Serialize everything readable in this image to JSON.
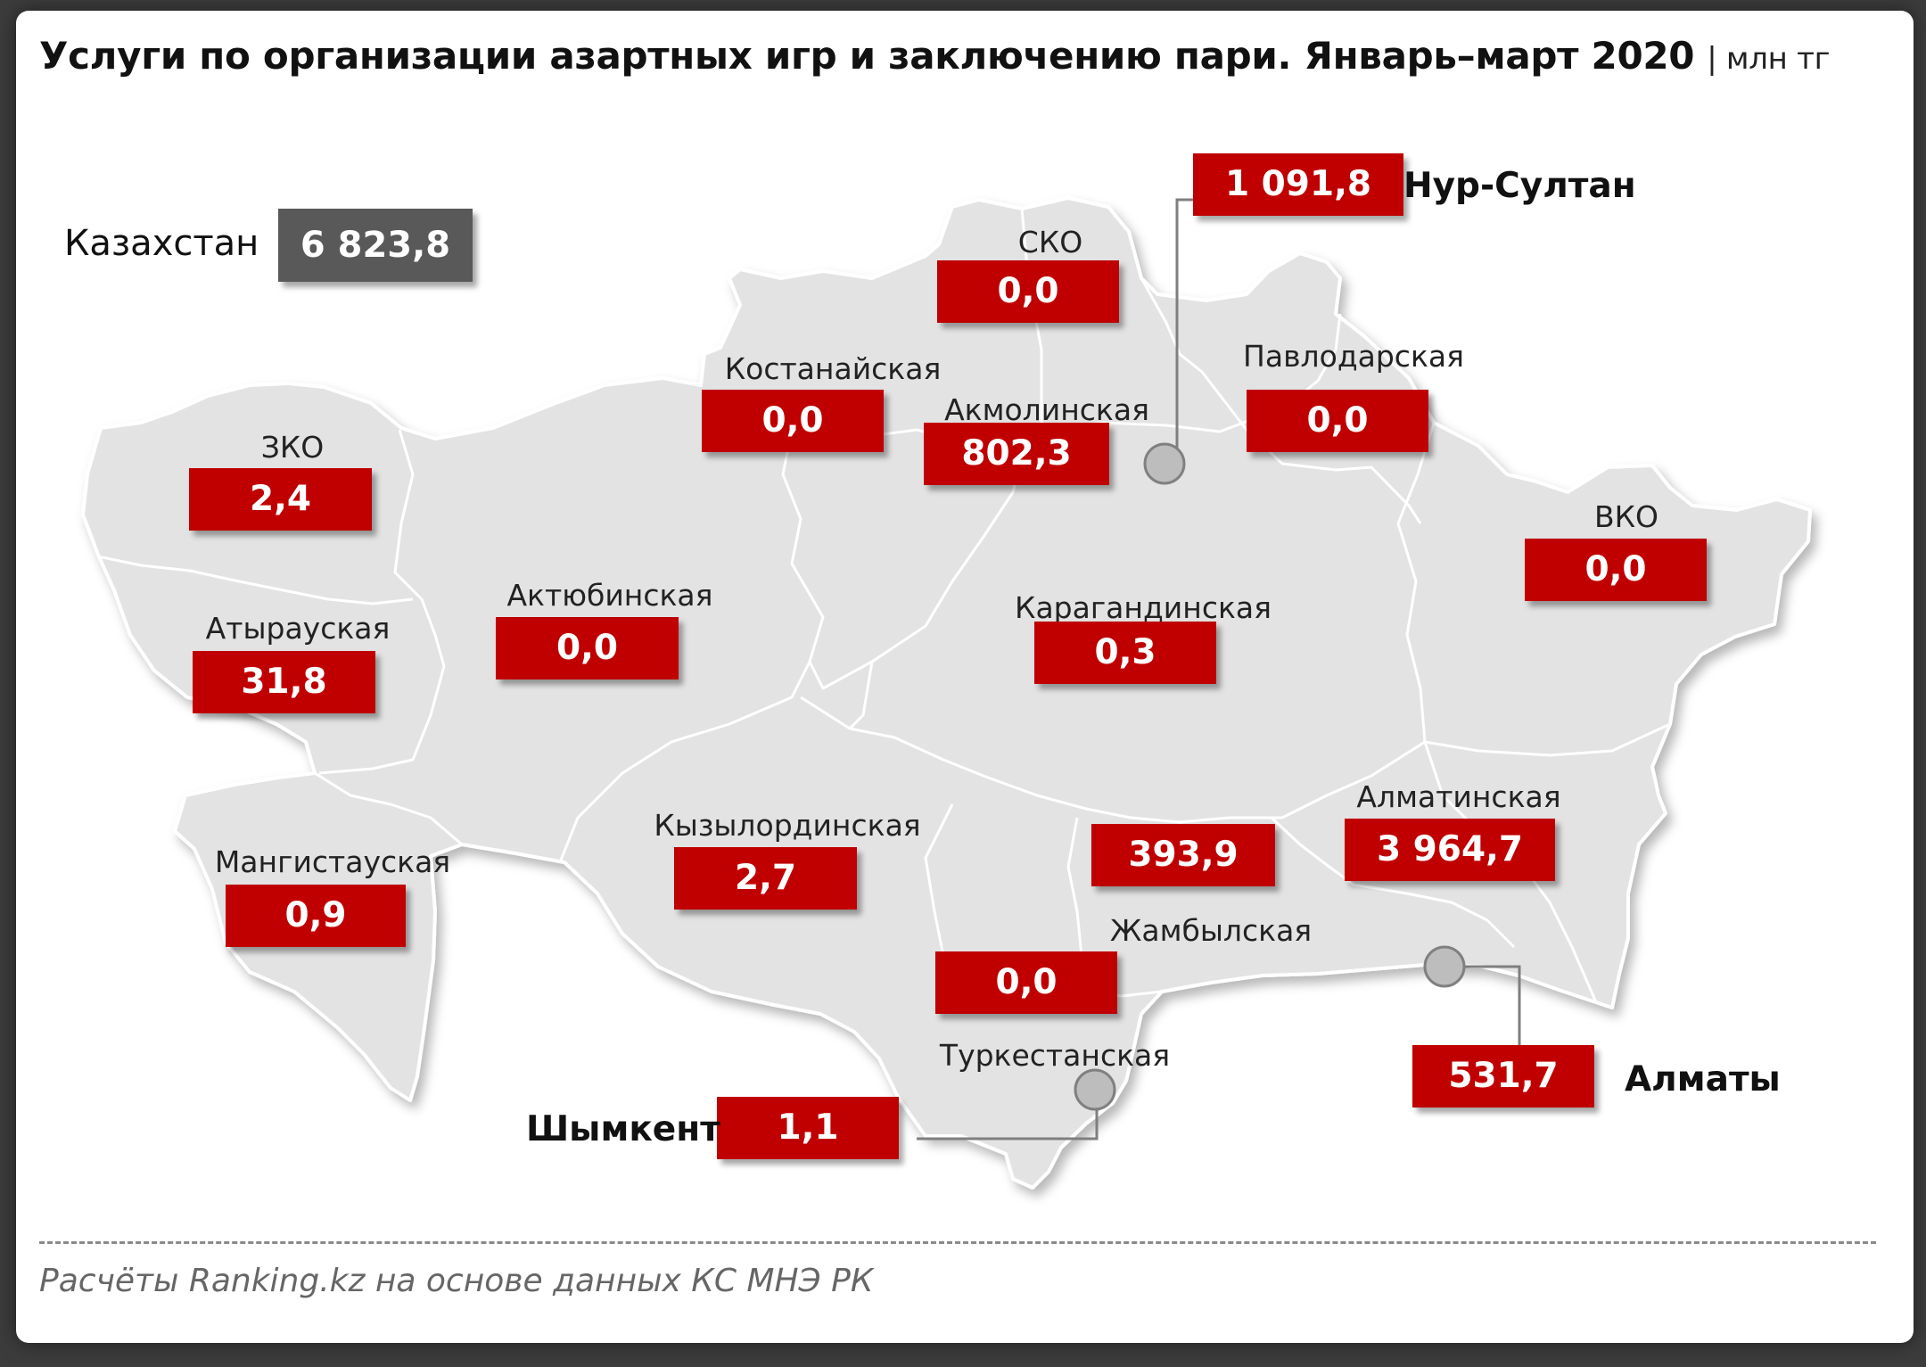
{
  "title": "Услуги по организации азартных игр и заключению пари. Январь–март 2020",
  "unit": "| млн тг",
  "total": {
    "label": "Казахстан",
    "value": "6 823,8"
  },
  "regions": [
    {
      "name": "ЗКО",
      "value": "2,4"
    },
    {
      "name": "Атырауская",
      "value": "31,8"
    },
    {
      "name": "Мангистауская",
      "value": "0,9"
    },
    {
      "name": "Актюбинская",
      "value": "0,0"
    },
    {
      "name": "Костанайская",
      "value": "0,0"
    },
    {
      "name": "СКО",
      "value": "0,0"
    },
    {
      "name": "Акмолинская",
      "value": "802,3"
    },
    {
      "name": "Павлодарская",
      "value": "0,0"
    },
    {
      "name": "ВКО",
      "value": "0,0"
    },
    {
      "name": "Карагандинская",
      "value": "0,3"
    },
    {
      "name": "Кызылординская",
      "value": "2,7"
    },
    {
      "name": "Туркестанская",
      "value": "0,0"
    },
    {
      "name": "Жамбылская",
      "value": "393,9"
    },
    {
      "name": "Алматинская",
      "value": "3 964,7"
    }
  ],
  "cities": [
    {
      "name": "Нур-Султан",
      "value": "1 091,8"
    },
    {
      "name": "Алматы",
      "value": "531,7"
    },
    {
      "name": "Шымкент",
      "value": "1,1"
    }
  ],
  "source": "Расчёты Ranking.kz на основе данных КС МНЭ РК",
  "colors": {
    "value_box": "#c00000",
    "total_box": "#595959",
    "map_fill": "#e3e3e3",
    "border": "#ffffff"
  }
}
